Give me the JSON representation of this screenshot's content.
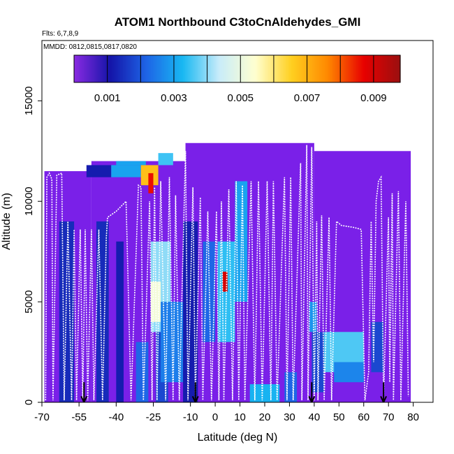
{
  "chart_data": {
    "type": "heatmap",
    "title": "ATOM1 Northbound C3toCnAldehydes_GMI",
    "notes": {
      "flights": "Flts: 6,7,8,9",
      "dates": "MMDD: 0812,0815,0817,0820"
    },
    "xlabel": "Latitude (deg N)",
    "ylabel": "Altitude (m)",
    "xlim": [
      -70,
      88
    ],
    "ylim": [
      0,
      18000
    ],
    "x_ticks": [
      -70,
      -55,
      -40,
      -25,
      -10,
      0,
      10,
      20,
      30,
      40,
      50,
      60,
      70,
      80
    ],
    "x_tick_labels": [
      "-70",
      "-55",
      "-40",
      "-25",
      "-10",
      "0",
      "10",
      "20",
      "30",
      "40",
      "50",
      "60",
      "70",
      "80"
    ],
    "y_ticks": [
      0,
      5000,
      10000,
      15000
    ],
    "y_tick_labels": [
      "0",
      "5000",
      "10000",
      "15000"
    ],
    "colorbar": {
      "range": [
        0,
        0.0098
      ],
      "tick_values": [
        0.001,
        0.003,
        0.005,
        0.007,
        0.009
      ],
      "tick_labels": [
        "0.001",
        "0.003",
        "0.005",
        "0.007",
        "0.009"
      ],
      "colors": [
        "#8a2be2",
        "#1414a8",
        "#1e64e6",
        "#18b8f2",
        "#c8ecfa",
        "#ffffd0",
        "#ffd020",
        "#ff8800",
        "#e80000",
        "#9a1010"
      ]
    },
    "background_color": "#7a20e8",
    "heatmap_blocks": [
      {
        "lat": [
          -63,
          -57
        ],
        "alt": [
          0,
          9000
        ],
        "value": 0.0014
      },
      {
        "lat": [
          -48,
          -43
        ],
        "alt": [
          0,
          9000
        ],
        "value": 0.0014
      },
      {
        "lat": [
          -40,
          -37
        ],
        "alt": [
          0,
          8000
        ],
        "value": 0.0012
      },
      {
        "lat": [
          -32,
          -27
        ],
        "alt": [
          0,
          3000
        ],
        "value": 0.0022
      },
      {
        "lat": [
          -24,
          -19
        ],
        "alt": [
          0,
          3500
        ],
        "value": 0.0018
      },
      {
        "lat": [
          -26,
          -18
        ],
        "alt": [
          3500,
          8000
        ],
        "value": 0.004
      },
      {
        "lat": [
          -26,
          -22
        ],
        "alt": [
          4000,
          6000
        ],
        "value": 0.0052
      },
      {
        "lat": [
          -22,
          -12
        ],
        "alt": [
          1000,
          5000
        ],
        "value": 0.0025
      },
      {
        "lat": [
          -13,
          -7
        ],
        "alt": [
          0,
          9000
        ],
        "value": 0.0012
      },
      {
        "lat": [
          -5,
          0
        ],
        "alt": [
          3000,
          8000
        ],
        "value": 0.0022
      },
      {
        "lat": [
          1,
          8
        ],
        "alt": [
          3000,
          8000
        ],
        "value": 0.0034
      },
      {
        "lat": [
          3,
          5
        ],
        "alt": [
          5500,
          6500
        ],
        "value": 0.009
      },
      {
        "lat": [
          8,
          13
        ],
        "alt": [
          5000,
          11000
        ],
        "value": 0.003
      },
      {
        "lat": [
          14,
          26
        ],
        "alt": [
          0,
          900
        ],
        "value": 0.0032
      },
      {
        "lat": [
          28,
          33
        ],
        "alt": [
          0,
          1500
        ],
        "value": 0.0022
      },
      {
        "lat": [
          38,
          41
        ],
        "alt": [
          3500,
          5000
        ],
        "value": 0.0028
      },
      {
        "lat": [
          39,
          44
        ],
        "alt": [
          500,
          3500
        ],
        "value": 0.0018
      },
      {
        "lat": [
          44,
          60
        ],
        "alt": [
          1500,
          3500
        ],
        "value": 0.0036
      },
      {
        "lat": [
          48,
          60
        ],
        "alt": [
          1000,
          2000
        ],
        "value": 0.0026
      },
      {
        "lat": [
          63,
          68
        ],
        "alt": [
          1500,
          4000
        ],
        "value": 0.0018
      },
      {
        "lat": [
          -52,
          -42
        ],
        "alt": [
          11200,
          11800
        ],
        "value": 0.0012
      },
      {
        "lat": [
          -42,
          -30
        ],
        "alt": [
          11200,
          11800
        ],
        "value": 0.003
      },
      {
        "lat": [
          -30,
          -23
        ],
        "alt": [
          10800,
          11800
        ],
        "value": 0.0068
      },
      {
        "lat": [
          -27,
          -25
        ],
        "alt": [
          10400,
          11400
        ],
        "value": 0.0086
      },
      {
        "lat": [
          -23,
          -17
        ],
        "alt": [
          11800,
          12400
        ],
        "value": 0.0035
      },
      {
        "lat": [
          -40,
          -28
        ],
        "alt": [
          11800,
          12000
        ],
        "value": 0.003
      }
    ],
    "flight_track": [
      [
        -68.5,
        100
      ],
      [
        -68,
        11200
      ],
      [
        -67,
        11400
      ],
      [
        -66,
        11100
      ],
      [
        -65.5,
        100
      ],
      [
        -64,
        11300
      ],
      [
        -62,
        11400
      ],
      [
        -61,
        100
      ],
      [
        -59.5,
        9000
      ],
      [
        -58,
        100
      ],
      [
        -57,
        8600
      ],
      [
        -56,
        100
      ],
      [
        -54.5,
        8600
      ],
      [
        -53.5,
        100
      ],
      [
        -52.5,
        8600
      ],
      [
        -51.5,
        100
      ],
      [
        -50,
        8600
      ],
      [
        -49,
        100
      ],
      [
        -47,
        8600
      ],
      [
        -45.5,
        100
      ],
      [
        -44,
        8200
      ],
      [
        -43.5,
        9200
      ],
      [
        -40,
        9500
      ],
      [
        -36,
        10000
      ],
      [
        -34,
        100
      ],
      [
        -31,
        10800
      ],
      [
        -30,
        10700
      ],
      [
        -29,
        100
      ],
      [
        -26.5,
        10000
      ],
      [
        -25.5,
        100
      ],
      [
        -24.5,
        10700
      ],
      [
        -23.5,
        100
      ],
      [
        -22,
        11000
      ],
      [
        -20,
        100
      ],
      [
        -18.5,
        11200
      ],
      [
        -17,
        100
      ],
      [
        -16,
        10300
      ],
      [
        -14.5,
        100
      ],
      [
        -12,
        12500
      ],
      [
        -11,
        100
      ],
      [
        -9,
        10700
      ],
      [
        -8,
        100
      ],
      [
        -6,
        10200
      ],
      [
        -5,
        100
      ],
      [
        -3,
        9500
      ],
      [
        -1.5,
        100
      ],
      [
        0.5,
        9500
      ],
      [
        1.5,
        100
      ],
      [
        2.5,
        10000
      ],
      [
        3.5,
        100
      ],
      [
        5.5,
        10600
      ],
      [
        7,
        100
      ],
      [
        8.5,
        11000
      ],
      [
        9.5,
        100
      ],
      [
        11,
        10800
      ],
      [
        12,
        100
      ],
      [
        14.5,
        11000
      ],
      [
        16,
        100
      ],
      [
        17.5,
        11000
      ],
      [
        19,
        100
      ],
      [
        21,
        11000
      ],
      [
        22.5,
        100
      ],
      [
        23.5,
        11000
      ],
      [
        25,
        100
      ],
      [
        28,
        11200
      ],
      [
        29,
        100
      ],
      [
        30.5,
        11200
      ],
      [
        31.5,
        100
      ],
      [
        34.5,
        11900
      ],
      [
        35,
        100
      ],
      [
        37,
        12800
      ],
      [
        37.5,
        100
      ],
      [
        39,
        12700
      ],
      [
        40,
        100
      ],
      [
        41,
        9000
      ],
      [
        41.5,
        100
      ],
      [
        43,
        9300
      ],
      [
        44,
        100
      ],
      [
        46,
        9200
      ],
      [
        47,
        100
      ],
      [
        49,
        9000
      ],
      [
        51,
        8800
      ],
      [
        56,
        8700
      ],
      [
        59,
        8600
      ],
      [
        60.5,
        100
      ],
      [
        62,
        1500
      ],
      [
        63,
        9000
      ],
      [
        64,
        2000
      ],
      [
        65,
        10000
      ],
      [
        66,
        11000
      ],
      [
        67,
        11200
      ],
      [
        68,
        100
      ],
      [
        70,
        9200
      ],
      [
        70.5,
        1000
      ],
      [
        71.5,
        10400
      ],
      [
        72,
        100
      ],
      [
        74,
        10500
      ],
      [
        75,
        100
      ],
      [
        77,
        10000
      ],
      [
        78,
        300
      ]
    ],
    "flight_track_color": "#ffffff",
    "markers": {
      "symbol": "down-arrow",
      "lats": [
        -53,
        -8,
        39,
        68
      ],
      "color": "#000000"
    }
  }
}
